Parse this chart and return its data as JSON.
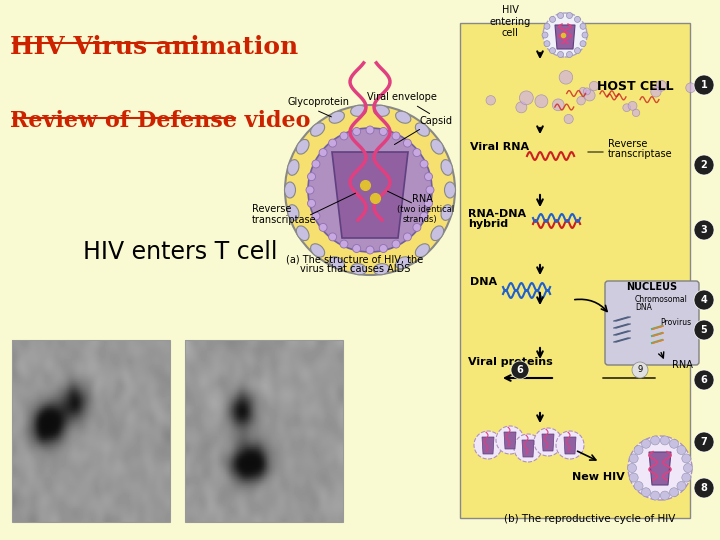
{
  "background_color": "#fafad2",
  "title1": "HIV Virus animation",
  "title2": "Review of Defense video",
  "title3": "HIV enters T cell",
  "title1_color": "#cc2200",
  "title2_color": "#cc2200",
  "title3_color": "#000000",
  "title1_fontsize": 18,
  "title2_fontsize": 16,
  "title3_fontsize": 17
}
